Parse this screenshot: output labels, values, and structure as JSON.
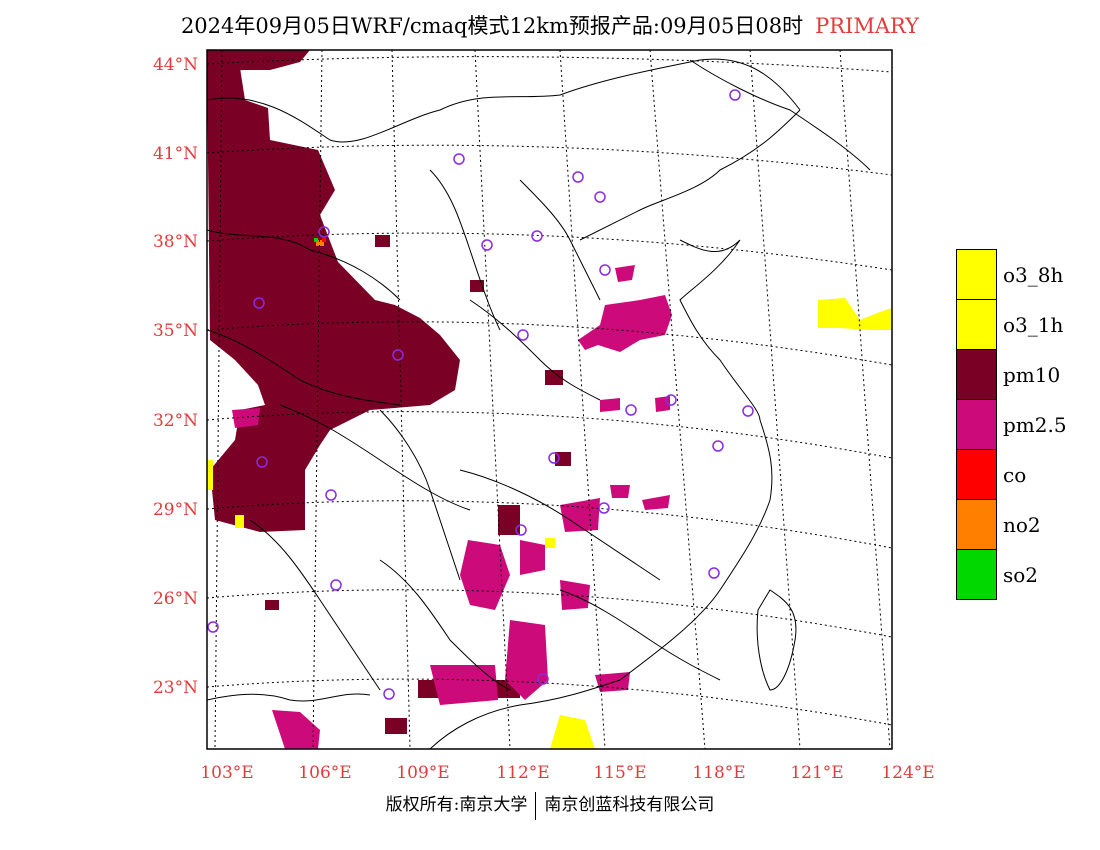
{
  "title": {
    "main": "2024年09月05日WRF/cmaq模式12km预报产品:09月05日08时",
    "tag": "PRIMARY"
  },
  "axes": {
    "lat_labels": [
      "44°N",
      "41°N",
      "38°N",
      "35°N",
      "32°N",
      "29°N",
      "26°N",
      "23°N"
    ],
    "lon_labels": [
      "103°E",
      "106°E",
      "109°E",
      "112°E",
      "115°E",
      "118°E",
      "121°E",
      "124°E"
    ]
  },
  "legend": [
    {
      "label": "o3_8h",
      "color": "#ffff00"
    },
    {
      "label": "o3_1h",
      "color": "#ffff00"
    },
    {
      "label": "pm10",
      "color": "#7a0026"
    },
    {
      "label": "pm2.5",
      "color": "#cc0a7a"
    },
    {
      "label": "co",
      "color": "#ff0000"
    },
    {
      "label": "no2",
      "color": "#ff7f00"
    },
    {
      "label": "so2",
      "color": "#00d800"
    }
  ],
  "colors": {
    "pm10": "#7a0026",
    "pm25": "#cc0a7a",
    "o3": "#ffff00",
    "station": "#8a2be2",
    "axis_label": "#e23b3b"
  },
  "footer": {
    "left": "版权所有:南京大学",
    "right": "南京创蓝科技有限公司"
  }
}
